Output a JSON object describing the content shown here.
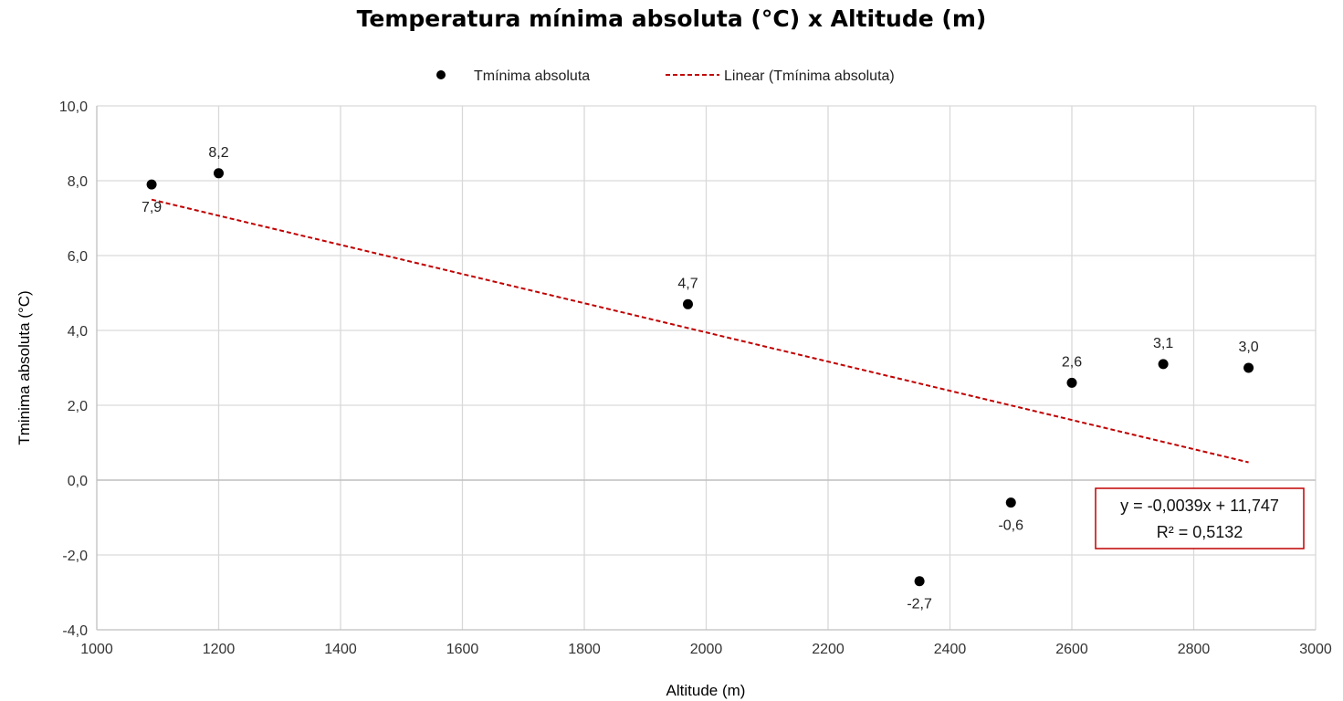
{
  "chart_data": {
    "type": "scatter",
    "title": "Temperatura mínima absoluta (°C) x Altitude (m)",
    "xlabel": "Altitude (m)",
    "ylabel": "Tminima absoluta (°C)",
    "xlim": [
      1000,
      3000
    ],
    "ylim": [
      -4,
      10
    ],
    "grid": true,
    "legend_position": "top",
    "x_ticks": [
      "1000",
      "1200",
      "1400",
      "1600",
      "1800",
      "2000",
      "2200",
      "2400",
      "2600",
      "2800",
      "3000"
    ],
    "y_ticks": [
      "-4,0",
      "-2,0",
      "0,0",
      "2,0",
      "4,0",
      "6,0",
      "8,0",
      "10,0"
    ],
    "series": [
      {
        "name": "Tmínima absoluta",
        "color": "#000000",
        "points": [
          {
            "x": 1090,
            "y": 7.9,
            "label": "7,9"
          },
          {
            "x": 1200,
            "y": 8.2,
            "label": "8,2"
          },
          {
            "x": 1970,
            "y": 4.7,
            "label": "4,7"
          },
          {
            "x": 2350,
            "y": -2.7,
            "label": "-2,7"
          },
          {
            "x": 2500,
            "y": -0.6,
            "label": "-0,6"
          },
          {
            "x": 2600,
            "y": 2.6,
            "label": "2,6"
          },
          {
            "x": 2750,
            "y": 3.1,
            "label": "3,1"
          },
          {
            "x": 2890,
            "y": 3.0,
            "label": "3,0"
          }
        ]
      }
    ],
    "trendline": {
      "name": "Linear (Tmínima absoluta)",
      "color": "#c00000",
      "slope": -0.0039,
      "intercept": 11.747,
      "x_range": [
        1090,
        2890
      ],
      "equation": "y = -0,0039x + 11,747",
      "r_squared": "R² = 0,5132"
    }
  }
}
